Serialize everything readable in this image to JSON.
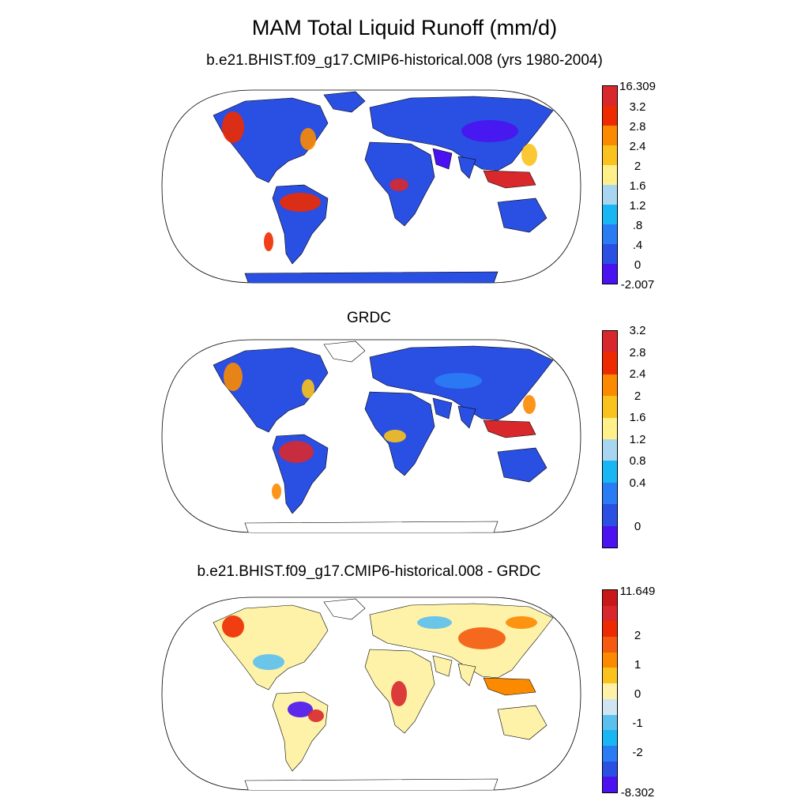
{
  "figure": {
    "title": "MAM Total Liquid Runoff (mm/d)"
  },
  "panels": [
    {
      "id": "model",
      "title": "b.e21.BHIST.f09_g17.CMIP6-historical.008 (yrs 1980-2004)",
      "colorbar": {
        "colors": [
          "#4a12f0",
          "#2a4fe3",
          "#2a7cf4",
          "#19b6f4",
          "#a8d6f0",
          "#fff08a",
          "#f9c21c",
          "#fc8a00",
          "#ee2a00",
          "#d8282c"
        ],
        "labels": [
          "-2.007",
          "0",
          ".4",
          ".8",
          "1.2",
          "1.6",
          "2",
          "2.4",
          "2.8",
          "3.2",
          "16.309"
        ]
      }
    },
    {
      "id": "obs",
      "title": "GRDC",
      "colorbar": {
        "colors": [
          "#4a12f0",
          "#2a4fe3",
          "#2a7cf4",
          "#19b6f4",
          "#a8d6f0",
          "#fff08a",
          "#f9c21c",
          "#fc8a00",
          "#ee2a00",
          "#d8282c"
        ],
        "labels": [
          "0",
          "0.4",
          "0.8",
          "1.2",
          "1.6",
          "2",
          "2.4",
          "2.8",
          "3.2"
        ]
      }
    },
    {
      "id": "diff",
      "title": "b.e21.BHIST.f09_g17.CMIP6-historical.008 - GRDC",
      "colorbar": {
        "colors": [
          "#4a12f0",
          "#2a4fe3",
          "#2a7cf4",
          "#19b6f4",
          "#5bc0f0",
          "#cfe6f2",
          "#fdf2a8",
          "#f9c21c",
          "#fc8a00",
          "#f45a10",
          "#ee2a00",
          "#d8282c",
          "#c81818"
        ],
        "labels": [
          "-8.302",
          "-2",
          "-1",
          "0",
          "1",
          "2",
          "11.649"
        ]
      }
    }
  ]
}
